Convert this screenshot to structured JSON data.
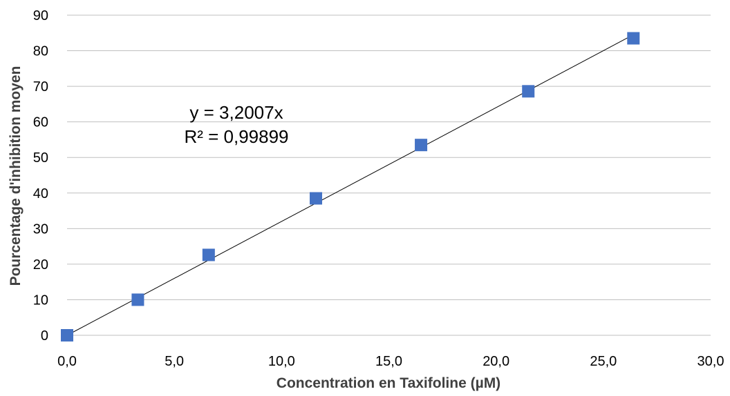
{
  "chart_data": {
    "type": "scatter",
    "xlabel": "Concentration en Taxifoline (µM)",
    "ylabel": "Pourcentage d'inhibition moyen",
    "xlim": [
      0,
      30
    ],
    "ylim": [
      0,
      90
    ],
    "x_ticks": [
      0,
      5,
      10,
      15,
      20,
      25,
      30
    ],
    "x_tick_labels": [
      "0,0",
      "5,0",
      "10,0",
      "15,0",
      "20,0",
      "25,0",
      "30,0"
    ],
    "y_ticks": [
      0,
      10,
      20,
      30,
      40,
      50,
      60,
      70,
      80,
      90
    ],
    "y_tick_labels": [
      "0",
      "10",
      "20",
      "30",
      "40",
      "50",
      "60",
      "70",
      "80",
      "90"
    ],
    "grid": "horizontal",
    "legend": "none",
    "series": [
      {
        "color": "#4472c4",
        "marker": "square",
        "x": [
          0.0,
          3.3,
          6.6,
          11.6,
          16.5,
          21.5,
          26.4
        ],
        "y": [
          0.0,
          10.0,
          22.6,
          38.5,
          53.5,
          68.6,
          83.5
        ]
      }
    ],
    "trendline": {
      "slope": 3.2007,
      "x_range": [
        0,
        26.4
      ],
      "color": "#000000"
    },
    "annotations": [
      "y = 3,2007x",
      "R² = 0,99899"
    ]
  }
}
